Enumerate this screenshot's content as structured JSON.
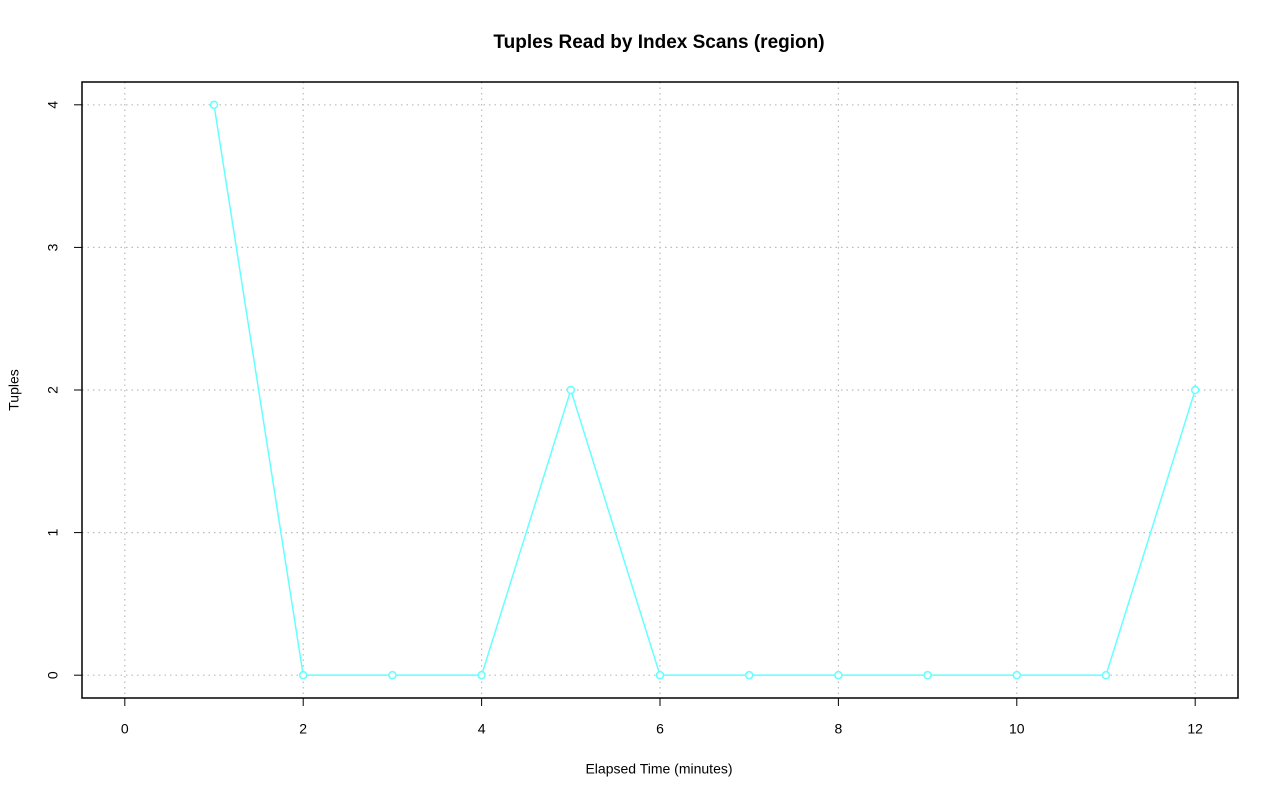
{
  "chart_data": {
    "type": "line",
    "title": "Tuples Read by Index Scans (region)",
    "x_label": "Elapsed Time (minutes)",
    "y_label": "Tuples",
    "x": [
      1,
      2,
      3,
      4,
      5,
      6,
      7,
      8,
      9,
      10,
      11,
      12
    ],
    "series": [
      {
        "name": "region",
        "color": "#66ffff",
        "values": [
          4,
          0,
          0,
          0,
          2,
          0,
          0,
          0,
          0,
          0,
          0,
          2
        ]
      }
    ],
    "xlim": [
      -0.48,
      12.48
    ],
    "ylim": [
      -0.16,
      4.16
    ],
    "xticks": [
      0,
      2,
      4,
      6,
      8,
      10,
      12
    ],
    "yticks": [
      0,
      1,
      2,
      3,
      4
    ],
    "grid": true
  }
}
